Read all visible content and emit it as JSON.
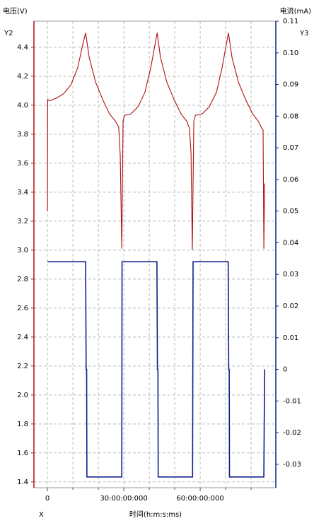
{
  "chart_data": {
    "type": "line",
    "title_y": "电压(V)",
    "title_y2": "电流(mA)",
    "y_axis_name": "Y2",
    "y2_axis_name": "Y3",
    "x_axis_name": "X",
    "xlabel": "时间(h:m:s:ms)",
    "xlim": [
      -5.3,
      89.7
    ],
    "xticks": [
      0,
      {
        "value": 30,
        "label": "30:00:00:000"
      },
      {
        "value": 60,
        "label": "60:00:00:000"
      }
    ],
    "xminorticks": [
      10,
      20,
      40,
      50,
      70,
      80
    ],
    "ylim": [
      1.36,
      4.58
    ],
    "yticks": [
      1.4,
      1.6,
      1.8,
      {
        "value": 2,
        "label": "2.0"
      },
      2.2,
      2.4,
      2.6,
      2.8,
      {
        "value": 3,
        "label": "3.0"
      },
      3.2,
      3.4,
      3.6,
      3.8,
      {
        "value": 4,
        "label": "4.0"
      },
      4.2,
      4.4
    ],
    "y2lim": [
      -0.0374,
      0.11
    ],
    "y2ticks": [
      -0.03,
      -0.02,
      -0.01,
      0,
      0.01,
      0.02,
      0.03,
      0.04,
      0.05,
      0.06,
      0.07,
      0.08,
      0.09,
      {
        "value": 0.1,
        "label": "0.10"
      },
      0.11
    ],
    "grid": true,
    "y_color": "#b01010",
    "y2_color": "#10208a",
    "series": [
      {
        "name": "电压",
        "color": "#b01010",
        "axis": "y",
        "x": [
          0,
          0.1,
          0.8,
          3.6,
          6.4,
          9.2,
          11.9,
          13.9,
          15,
          16.4,
          18.9,
          21.7,
          24.4,
          26.7,
          28,
          28.6,
          29.2,
          29.7,
          30.3,
          32.8,
          35.6,
          38.3,
          40.6,
          43.1,
          44.4,
          46.9,
          49.7,
          52.5,
          54.7,
          55.8,
          56.4,
          56.9,
          57.5,
          58.1,
          60.8,
          63.6,
          66.4,
          68.6,
          71.1,
          72.5,
          75,
          77.8,
          80.6,
          82.8,
          84.2,
          84.7,
          85,
          85.3
        ],
        "values": [
          3.27,
          4.04,
          4.03,
          4.05,
          4.08,
          4.14,
          4.26,
          4.42,
          4.5,
          4.33,
          4.16,
          4.04,
          3.94,
          3.89,
          3.85,
          3.65,
          3.01,
          3.89,
          3.93,
          3.94,
          3.99,
          4.09,
          4.26,
          4.5,
          4.33,
          4.16,
          4.04,
          3.94,
          3.89,
          3.84,
          3.67,
          3.0,
          3.89,
          3.93,
          3.94,
          3.99,
          4.09,
          4.26,
          4.5,
          4.33,
          4.16,
          4.04,
          3.94,
          3.89,
          3.84,
          3.83,
          3.01,
          3.46
        ]
      },
      {
        "name": "电流",
        "color": "#10208a",
        "axis": "y2",
        "x": [
          0,
          15,
          15.2,
          15.4,
          15.5,
          29.2,
          29.3,
          43,
          43.2,
          43.4,
          43.5,
          57,
          57.1,
          57.2,
          71,
          71.2,
          71.4,
          71.5,
          85,
          85.3
        ],
        "values": [
          0.034,
          0.034,
          0,
          0,
          -0.034,
          -0.034,
          0.034,
          0.034,
          0,
          0,
          -0.034,
          -0.034,
          0,
          0.034,
          0.034,
          0,
          0,
          -0.034,
          -0.034,
          0
        ]
      }
    ]
  }
}
